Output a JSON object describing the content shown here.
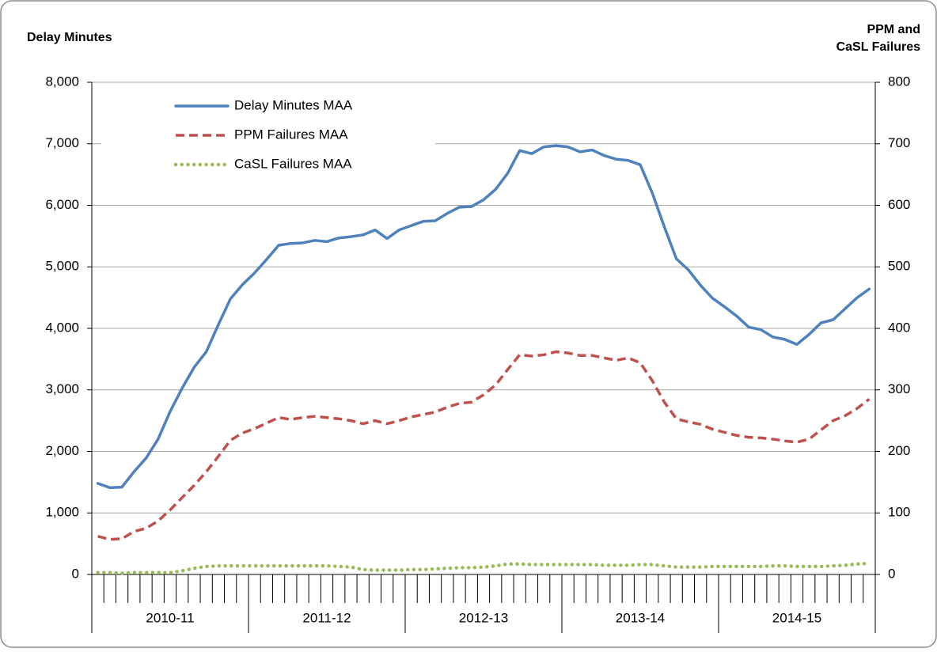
{
  "chart_data": {
    "type": "line",
    "ylabel": "Delay Minutes",
    "y2label": [
      "PPM and",
      "CaSL Failures"
    ],
    "categories": [
      null,
      null,
      null,
      null,
      null,
      null,
      null,
      null,
      null,
      null,
      null,
      null,
      null,
      null,
      null,
      null,
      null,
      null,
      null,
      null,
      null,
      null,
      null,
      null,
      null,
      null,
      null,
      null,
      null,
      null,
      null,
      null,
      null,
      null,
      null,
      null,
      null,
      null,
      null,
      null,
      null,
      null,
      null,
      null,
      null,
      null,
      null,
      null,
      null,
      null,
      null,
      null,
      null,
      null,
      null,
      null,
      null,
      null,
      null,
      null,
      null,
      null,
      null,
      null,
      null
    ],
    "groups": [
      "2010-11",
      "2011-12",
      "2012-13",
      "2013-14",
      "2014-15"
    ],
    "ylim": [
      0,
      8000
    ],
    "yticks": [
      0,
      {
        "value": 1000,
        "label": "1,000"
      },
      {
        "value": 2000,
        "label": "2,000"
      },
      {
        "value": 3000,
        "label": "3,000"
      },
      {
        "value": 4000,
        "label": "4,000"
      },
      {
        "value": 5000,
        "label": "5,000"
      },
      {
        "value": 6000,
        "label": "6,000"
      },
      {
        "value": 7000,
        "label": "7,000"
      },
      {
        "value": 8000,
        "label": "8,000"
      }
    ],
    "y2lim": [
      0,
      800
    ],
    "y2ticks": [
      0,
      100,
      200,
      300,
      400,
      500,
      600,
      700,
      800
    ],
    "grid": true,
    "legend": "upper left",
    "series": [
      {
        "name": "Delay Minutes MAA",
        "color": "#4f81bd",
        "style": "solid",
        "values": [
          1480,
          1410,
          1420,
          1670,
          1890,
          2200,
          2650,
          3030,
          3370,
          3620,
          4060,
          4480,
          4710,
          4900,
          5120,
          5350,
          5380,
          5390,
          5430,
          5410,
          5470,
          5490,
          5520,
          5600,
          5460,
          5600,
          5670,
          5740,
          5750,
          5870,
          5970,
          5980,
          6090,
          6260,
          6520,
          6890,
          6840,
          6950,
          6970,
          6950,
          6870,
          6900,
          6810,
          6750,
          6730,
          6660,
          6200,
          5650,
          5130,
          4950,
          4700,
          4490,
          4350,
          4200,
          4020,
          3980,
          3860,
          3820,
          3740,
          3900,
          4090,
          4140,
          4320,
          4500,
          4640
        ]
      },
      {
        "name": "PPM Failures MAA",
        "color": "#c0504d",
        "style": "dashed",
        "axis": "y2",
        "values": [
          62,
          57,
          58,
          70,
          75,
          87,
          105,
          125,
          145,
          167,
          192,
          218,
          230,
          237,
          246,
          255,
          252,
          255,
          257,
          255,
          253,
          250,
          245,
          250,
          245,
          250,
          256,
          260,
          264,
          272,
          278,
          280,
          292,
          308,
          333,
          357,
          355,
          357,
          362,
          360,
          356,
          356,
          352,
          348,
          352,
          344,
          315,
          280,
          253,
          248,
          244,
          236,
          231,
          226,
          223,
          222,
          220,
          217,
          215,
          220,
          235,
          250,
          258,
          270,
          285
        ]
      },
      {
        "name": "CaSL Failures MAA",
        "color": "#9bbb59",
        "style": "dotted",
        "axis": "y2",
        "values": [
          3,
          3,
          2,
          3,
          3,
          3,
          3,
          6,
          10,
          13,
          14,
          14,
          14,
          14,
          14,
          14,
          14,
          14,
          14,
          14,
          13,
          12,
          8,
          7,
          7,
          7,
          8,
          8,
          9,
          10,
          11,
          11,
          12,
          14,
          17,
          17,
          16,
          16,
          16,
          16,
          16,
          16,
          15,
          15,
          15,
          16,
          16,
          14,
          12,
          12,
          12,
          13,
          13,
          13,
          13,
          13,
          14,
          14,
          13,
          13,
          13,
          14,
          15,
          17,
          18
        ]
      }
    ]
  }
}
